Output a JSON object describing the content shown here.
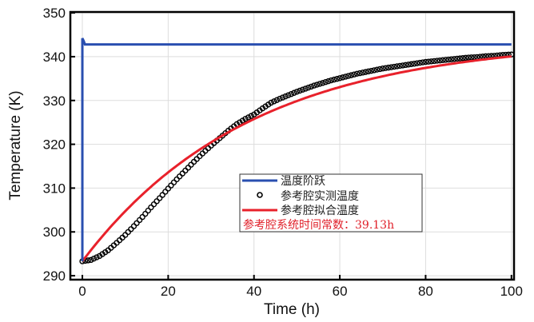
{
  "chart_data": {
    "type": "line",
    "xlabel": "Time (h)",
    "ylabel": "Temperature (K)",
    "xlim": [
      -2.8,
      100.6
    ],
    "ylim": [
      289.1,
      350.2
    ],
    "xticks": [
      0,
      20,
      40,
      60,
      80,
      100
    ],
    "yticks": [
      290,
      300,
      310,
      320,
      330,
      340,
      350
    ],
    "grid": true,
    "legend_position": "center-right",
    "series": [
      {
        "name": "温度阶跃",
        "color": "#2a4fb0",
        "style": "line",
        "x": [
          0,
          0,
          0.3,
          0.6,
          100
        ],
        "y": [
          293.3,
          344.2,
          343.6,
          342.8,
          342.8
        ]
      },
      {
        "name": "参考腔实测温度",
        "color": "#000000",
        "style": "marker",
        "x": [
          0,
          2,
          4,
          6,
          8,
          10,
          12,
          14,
          16,
          18,
          20,
          22,
          24,
          26,
          28,
          30,
          32,
          34,
          36,
          38,
          40,
          42,
          44,
          46,
          48,
          50,
          52,
          54,
          56,
          58,
          60,
          62,
          64,
          66,
          68,
          70,
          72,
          74,
          76,
          78,
          80,
          82,
          84,
          86,
          88,
          90,
          92,
          94,
          96,
          98,
          100
        ],
        "y": [
          293.3,
          293.6,
          294.5,
          295.8,
          297.5,
          299.3,
          301.3,
          303.4,
          305.6,
          307.7,
          309.9,
          312.0,
          314.0,
          316.0,
          317.9,
          319.7,
          321.4,
          323.1,
          324.6,
          325.8,
          326.8,
          328.2,
          329.5,
          330.4,
          331.2,
          332.0,
          332.7,
          333.4,
          334.0,
          334.6,
          335.1,
          335.6,
          336.1,
          336.5,
          336.9,
          337.3,
          337.6,
          337.9,
          338.2,
          338.5,
          338.8,
          339.0,
          339.2,
          339.4,
          339.6,
          339.8,
          339.9,
          340.1,
          340.2,
          340.4,
          340.5
        ]
      },
      {
        "name": "参考腔拟合温度",
        "color": "#e8212b",
        "style": "line",
        "model": "first-order",
        "T0": 293.3,
        "Tinf": 344.0,
        "tau": 39.13
      }
    ],
    "annotation": "参考腔系统时间常数：39.13h"
  }
}
